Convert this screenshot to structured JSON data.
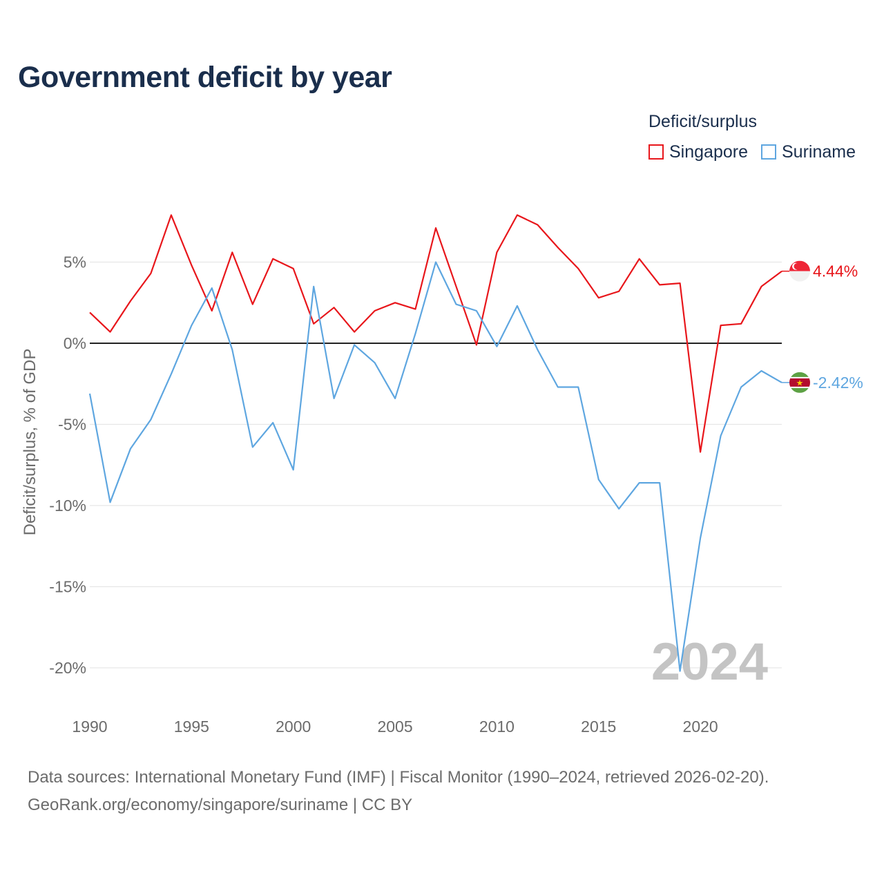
{
  "title": "Government deficit by year",
  "legend": {
    "title": "Deficit/surplus",
    "items": [
      {
        "label": "Singapore",
        "color": "#e8161b"
      },
      {
        "label": "Suriname",
        "color": "#5ea6e0"
      }
    ]
  },
  "source": {
    "line1": "Data sources: International Monetary Fund (IMF) | Fiscal Monitor (1990–2024, retrieved 2026-02-20).",
    "line2": "GeoRank.org/economy/singapore/suriname | CC BY"
  },
  "chart_data": {
    "type": "line",
    "title": "Government deficit by year",
    "xlabel": "",
    "ylabel": "Deficit/surplus, % of GDP",
    "xlim": [
      1990,
      2024
    ],
    "ylim": [
      -21,
      8
    ],
    "x_ticks": [
      1990,
      1995,
      2000,
      2005,
      2010,
      2015,
      2020
    ],
    "x_tick_labels": [
      "1990",
      "1995",
      "2000",
      "2005",
      "2010",
      "2015",
      "2020"
    ],
    "y_ticks": [
      5,
      0,
      -5,
      -10,
      -15,
      -20
    ],
    "y_tick_labels": [
      "5%",
      "0%",
      "-5%",
      "-10%",
      "-15%",
      "-20%"
    ],
    "grid": true,
    "legend_position": "top-right",
    "watermark_year": "2024",
    "x": [
      1990,
      1991,
      1992,
      1993,
      1994,
      1995,
      1996,
      1997,
      1998,
      1999,
      2000,
      2001,
      2002,
      2003,
      2004,
      2005,
      2006,
      2007,
      2008,
      2009,
      2010,
      2011,
      2012,
      2013,
      2014,
      2015,
      2016,
      2017,
      2018,
      2019,
      2020,
      2021,
      2022,
      2023,
      2024
    ],
    "series": [
      {
        "name": "Singapore",
        "color": "#e8161b",
        "end_label": "4.44%",
        "values": [
          1.9,
          0.7,
          2.6,
          4.3,
          7.9,
          4.8,
          2.0,
          5.6,
          2.4,
          5.2,
          4.6,
          1.2,
          2.2,
          0.7,
          2.0,
          2.5,
          2.1,
          7.1,
          3.5,
          -0.1,
          5.6,
          7.9,
          7.3,
          5.9,
          4.6,
          2.8,
          3.2,
          5.2,
          3.6,
          3.7,
          -6.7,
          1.1,
          1.2,
          3.5,
          4.44
        ]
      },
      {
        "name": "Suriname",
        "color": "#5ea6e0",
        "end_label": "-2.42%",
        "values": [
          -3.1,
          -9.8,
          -6.5,
          -4.7,
          -1.9,
          1.1,
          3.4,
          -0.4,
          -6.4,
          -4.9,
          -7.8,
          3.5,
          -3.4,
          -0.1,
          -1.2,
          -3.4,
          0.6,
          5.0,
          2.4,
          2.0,
          -0.2,
          2.3,
          -0.4,
          -2.7,
          -2.7,
          -8.4,
          -10.2,
          -8.6,
          -8.6,
          -20.2,
          -12.0,
          -5.7,
          -2.7,
          -1.7,
          -2.42
        ]
      }
    ]
  }
}
